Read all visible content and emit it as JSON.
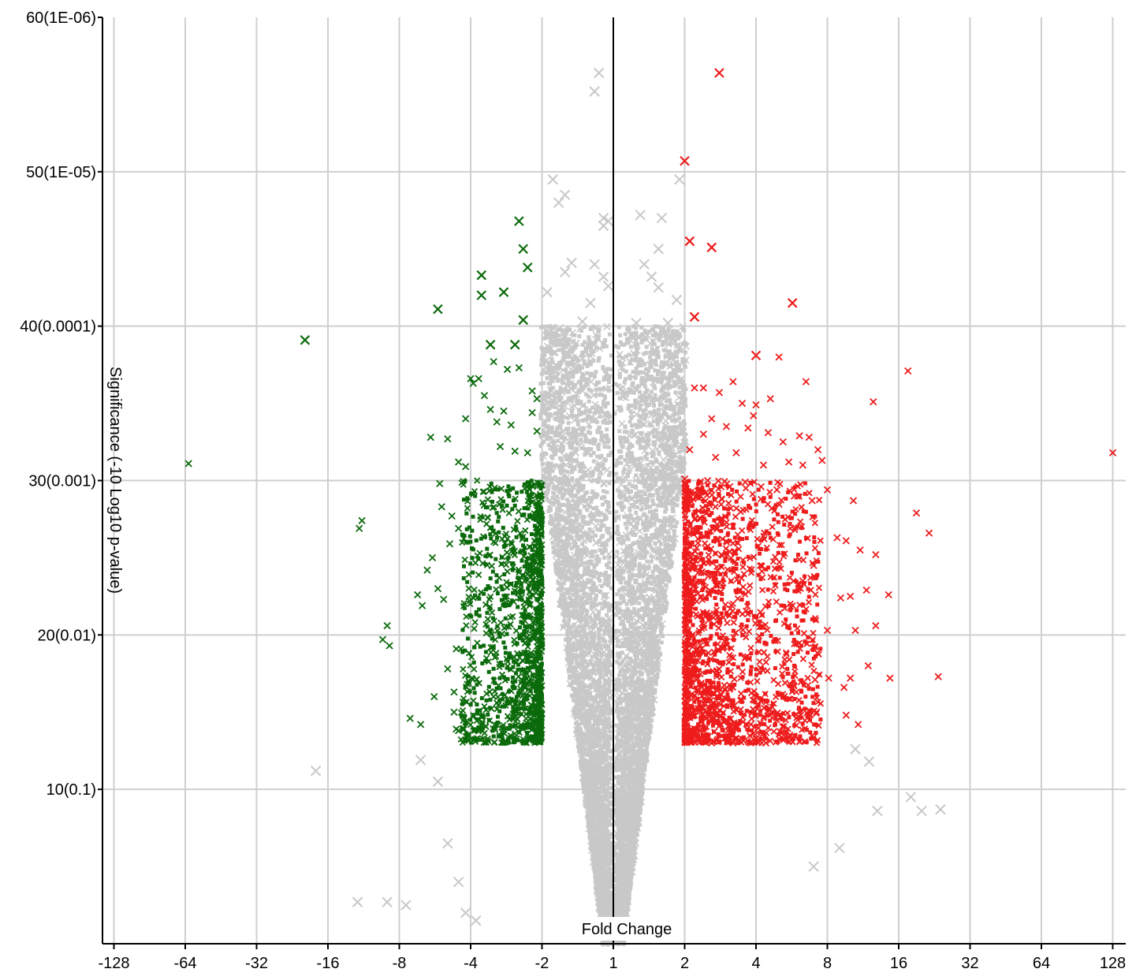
{
  "chart_data": {
    "type": "scatter",
    "title": "",
    "xlabel": "Fold Change",
    "ylabel": "Significance (-10 Log10 p-value)",
    "x_scale": "signed-log2",
    "x_ticks": [
      "-128",
      "-64",
      "-32",
      "-16",
      "-8",
      "-4",
      "-2",
      "1",
      "2",
      "4",
      "8",
      "16",
      "32",
      "64",
      "128"
    ],
    "y_ticks": [
      "10(0.1)",
      "20(0.01)",
      "30(0.001)",
      "40(0.0001)",
      "50(1E-05)",
      "60(1E-06)"
    ],
    "ylim": [
      0,
      60
    ],
    "grid": true,
    "colors": {
      "down": "#0b6a0b",
      "up": "#ee1c1c",
      "ns": "#c8c8c8",
      "grid": "#cfcfcf",
      "axis": "#000000"
    },
    "series": [
      {
        "key": "up",
        "points": [
          [
            2.8,
            56.4
          ],
          [
            2.0,
            50.7
          ],
          [
            2.1,
            45.5
          ],
          [
            2.6,
            45.1
          ],
          [
            2.2,
            40.6
          ],
          [
            5.7,
            41.5
          ],
          [
            17.5,
            37.1
          ],
          [
            12.5,
            35.1
          ],
          [
            128,
            31.8
          ],
          [
            4.0,
            38.1
          ],
          [
            5.0,
            38.0
          ],
          [
            3.2,
            36.4
          ],
          [
            6.5,
            36.4
          ],
          [
            2.2,
            36.0
          ],
          [
            2.4,
            36.0
          ],
          [
            2.8,
            35.7
          ],
          [
            3.5,
            35.0
          ],
          [
            4.6,
            35.3
          ],
          [
            4.0,
            34.9
          ],
          [
            3.9,
            34.2
          ],
          [
            2.6,
            34.0
          ],
          [
            2.4,
            33.0
          ],
          [
            3.0,
            33.5
          ],
          [
            3.7,
            33.4
          ],
          [
            4.5,
            33.1
          ],
          [
            5.2,
            32.5
          ],
          [
            6.1,
            32.9
          ],
          [
            6.7,
            32.8
          ],
          [
            7.3,
            32.0
          ],
          [
            2.1,
            32.0
          ],
          [
            2.7,
            31.5
          ],
          [
            3.3,
            31.8
          ],
          [
            4.3,
            31.0
          ],
          [
            5.5,
            31.2
          ],
          [
            6.3,
            31.0
          ],
          [
            7.6,
            31.3
          ],
          [
            2.0,
            30.1
          ],
          [
            2.5,
            30.0
          ],
          [
            3.1,
            29.6
          ],
          [
            3.6,
            29.9
          ],
          [
            4.2,
            29.6
          ],
          [
            4.9,
            29.4
          ],
          [
            5.8,
            29.0
          ],
          [
            6.9,
            28.7
          ],
          [
            8.0,
            29.4
          ],
          [
            10.3,
            28.7
          ],
          [
            19.0,
            27.9
          ],
          [
            21.5,
            26.6
          ],
          [
            8.8,
            26.3
          ],
          [
            9.6,
            26.1
          ],
          [
            11.0,
            25.5
          ],
          [
            12.8,
            25.2
          ],
          [
            7.0,
            24.5
          ],
          [
            6.3,
            23.5
          ],
          [
            10.0,
            22.5
          ],
          [
            11.7,
            22.9
          ],
          [
            14.5,
            22.6
          ],
          [
            9.1,
            22.4
          ],
          [
            8.0,
            20.3
          ],
          [
            10.5,
            20.3
          ],
          [
            12.8,
            20.6
          ],
          [
            11.9,
            18.0
          ],
          [
            14.7,
            17.2
          ],
          [
            23.5,
            17.3
          ],
          [
            7.1,
            17.1
          ],
          [
            8.1,
            17.2
          ],
          [
            9.4,
            16.6
          ],
          [
            10.0,
            17.2
          ],
          [
            9.6,
            14.8
          ],
          [
            10.8,
            14.2
          ],
          [
            7.2,
            15.0
          ],
          [
            6.0,
            14.5
          ],
          [
            5.3,
            13.6
          ],
          [
            4.4,
            13.0
          ],
          [
            3.8,
            13.0
          ],
          [
            3.2,
            13.0
          ],
          [
            2.6,
            13.0
          ]
        ],
        "cloud": {
          "xmin": 2.0,
          "xmax": 7.5,
          "ymin": 13,
          "ymax": 30,
          "count": 1700
        }
      },
      {
        "key": "down",
        "points": [
          [
            -2.5,
            46.8
          ],
          [
            -2.4,
            45.0
          ],
          [
            -2.3,
            43.8
          ],
          [
            -3.6,
            43.3
          ],
          [
            -3.6,
            42.0
          ],
          [
            -2.9,
            42.2
          ],
          [
            -5.5,
            41.1
          ],
          [
            -2.4,
            40.4
          ],
          [
            -20.0,
            39.1
          ],
          [
            -3.3,
            38.8
          ],
          [
            -2.6,
            38.8
          ],
          [
            -3.2,
            37.7
          ],
          [
            -2.8,
            37.2
          ],
          [
            -2.5,
            37.3
          ],
          [
            -4.0,
            36.6
          ],
          [
            -3.7,
            36.6
          ],
          [
            -3.9,
            36.3
          ],
          [
            -3.5,
            35.5
          ],
          [
            -2.2,
            35.8
          ],
          [
            -2.1,
            35.3
          ],
          [
            -3.3,
            34.6
          ],
          [
            -2.9,
            34.5
          ],
          [
            -2.2,
            34.4
          ],
          [
            -4.2,
            34.0
          ],
          [
            -3.1,
            33.8
          ],
          [
            -2.7,
            33.6
          ],
          [
            -2.1,
            33.2
          ],
          [
            -5.9,
            32.8
          ],
          [
            -5.0,
            32.7
          ],
          [
            -4.5,
            31.2
          ],
          [
            -4.2,
            30.9
          ],
          [
            -3.0,
            32.2
          ],
          [
            -2.6,
            31.9
          ],
          [
            -2.3,
            31.8
          ],
          [
            -62.0,
            31.1
          ],
          [
            -11.5,
            27.4
          ],
          [
            -11.8,
            26.9
          ],
          [
            -5.4,
            29.8
          ],
          [
            -5.3,
            28.3
          ],
          [
            -4.8,
            27.7
          ],
          [
            -4.5,
            26.9
          ],
          [
            -4.9,
            25.9
          ],
          [
            -5.8,
            25.0
          ],
          [
            -6.1,
            24.2
          ],
          [
            -5.5,
            23.0
          ],
          [
            -6.7,
            22.6
          ],
          [
            -6.4,
            21.9
          ],
          [
            -5.2,
            22.3
          ],
          [
            -9.0,
            20.6
          ],
          [
            -9.4,
            19.7
          ],
          [
            -8.8,
            19.3
          ],
          [
            -4.6,
            19.1
          ],
          [
            -5.0,
            17.8
          ],
          [
            -4.7,
            16.3
          ],
          [
            -5.7,
            16.0
          ],
          [
            -4.7,
            15.0
          ],
          [
            -7.2,
            14.6
          ],
          [
            -6.5,
            14.2
          ],
          [
            -4.5,
            13.8
          ],
          [
            -4.6,
            13.9
          ]
        ],
        "cloud": {
          "xmin": -4.4,
          "xmax": -2.0,
          "ymin": 13,
          "ymax": 30,
          "count": 1200
        }
      },
      {
        "key": "ns",
        "points": [
          [
            -1.15,
            56.4
          ],
          [
            -1.2,
            55.2
          ],
          [
            -1.8,
            49.5
          ],
          [
            -1.6,
            48.5
          ],
          [
            -1.7,
            48.0
          ],
          [
            -1.1,
            47.0
          ],
          [
            -1.05,
            46.8
          ],
          [
            -1.1,
            46.5
          ],
          [
            1.3,
            47.2
          ],
          [
            1.6,
            47.0
          ],
          [
            1.9,
            49.5
          ],
          [
            1.55,
            45.0
          ],
          [
            1.35,
            44.0
          ],
          [
            1.45,
            43.2
          ],
          [
            1.55,
            42.5
          ],
          [
            1.85,
            41.7
          ],
          [
            1.7,
            40.2
          ],
          [
            1.25,
            40.2
          ],
          [
            1.75,
            39.0
          ],
          [
            1.5,
            38.4
          ],
          [
            1.45,
            37.4
          ],
          [
            1.9,
            38.6
          ],
          [
            -1.5,
            44.1
          ],
          [
            -1.2,
            44.0
          ],
          [
            -1.6,
            43.5
          ],
          [
            -1.1,
            43.2
          ],
          [
            -1.05,
            42.6
          ],
          [
            -1.9,
            42.2
          ],
          [
            -1.25,
            41.5
          ],
          [
            -1.35,
            40.3
          ],
          [
            -1.7,
            39.8
          ],
          [
            -18.0,
            11.2
          ],
          [
            -12.0,
            2.7
          ],
          [
            -9.0,
            2.7
          ],
          [
            -7.5,
            2.5
          ],
          [
            -6.5,
            11.9
          ],
          [
            -5.5,
            10.5
          ],
          [
            -5.0,
            6.5
          ],
          [
            -4.5,
            4.0
          ],
          [
            -4.2,
            2.0
          ],
          [
            -3.8,
            1.5
          ],
          [
            18.0,
            9.5
          ],
          [
            20.0,
            8.6
          ],
          [
            24.0,
            8.7
          ],
          [
            13.0,
            8.6
          ],
          [
            9.0,
            6.2
          ],
          [
            7.0,
            5.0
          ],
          [
            12.0,
            11.8
          ],
          [
            10.5,
            12.6
          ]
        ],
        "clouds": [
          {
            "side": "neg",
            "ymin": 0,
            "ymax": 40,
            "count": 4200
          },
          {
            "side": "pos",
            "ymin": 0,
            "ymax": 40,
            "count": 4200
          }
        ]
      }
    ]
  }
}
